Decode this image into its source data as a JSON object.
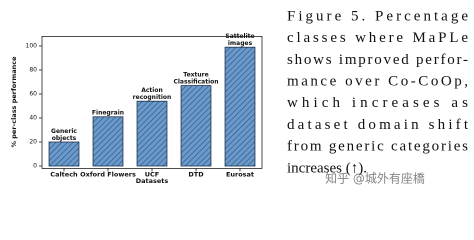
{
  "chart_data": {
    "type": "bar",
    "xlabel": "Datasets",
    "ylabel": "% per-class performance",
    "categories": [
      "Caltech",
      "Oxford Flowers",
      "UCF",
      "DTD",
      "Eurosat"
    ],
    "values": [
      20,
      41,
      54,
      67,
      99
    ],
    "annotations": [
      "Generic objects",
      "Finegrain",
      "Action recognition",
      "Texture Classification",
      "Sattelite images"
    ],
    "color": "#6a9acb",
    "hatch_color": "#2b4f7e",
    "ylim": [
      -2,
      108
    ],
    "yticks": [
      0,
      20,
      40,
      60,
      80,
      100
    ]
  },
  "caption": {
    "lines": [
      "Figure 5. Percentage",
      "classes where MaPLe",
      "shows improved perfor-",
      "mance over Co-CoOp,",
      "which increases as",
      "dataset domain shift",
      "from generic categories",
      "increases (↑)."
    ]
  },
  "watermark": "知乎 @城外有座橋"
}
